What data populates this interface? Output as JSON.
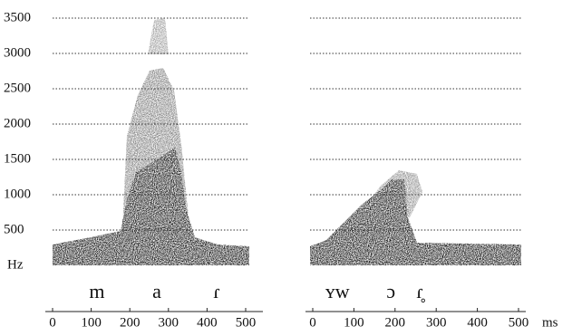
{
  "chart_data": [
    {
      "type": "spectrogram",
      "ylim": [
        0,
        3500
      ],
      "yticks": [
        {
          "value": 0,
          "label": "Hz"
        },
        500,
        1000,
        1500,
        2000,
        2500,
        3000,
        3500
      ],
      "ytick_labels": true,
      "xlim": [
        0,
        500
      ],
      "xticks": [
        0,
        100,
        200,
        300,
        400,
        500
      ],
      "segments": [
        {
          "label": "m",
          "x": 115
        },
        {
          "label": "a",
          "x": 270
        },
        {
          "label": "ɾ",
          "x": 425
        }
      ],
      "grid": true
    },
    {
      "type": "spectrogram",
      "ylim": [
        0,
        3500
      ],
      "yticks": [
        0,
        500,
        1000,
        1500,
        2000,
        2500,
        3000,
        3500
      ],
      "ytick_labels": false,
      "xlim": [
        0,
        500
      ],
      "xticks": [
        0,
        100,
        200,
        300,
        400,
        500
      ],
      "xlabel": "ms",
      "segments": [
        {
          "label": "ʏw",
          "x": 60
        },
        {
          "label": "ɔ",
          "x": 190
        },
        {
          "label": "ɾ̥",
          "x": 260
        }
      ],
      "grid": true
    }
  ]
}
